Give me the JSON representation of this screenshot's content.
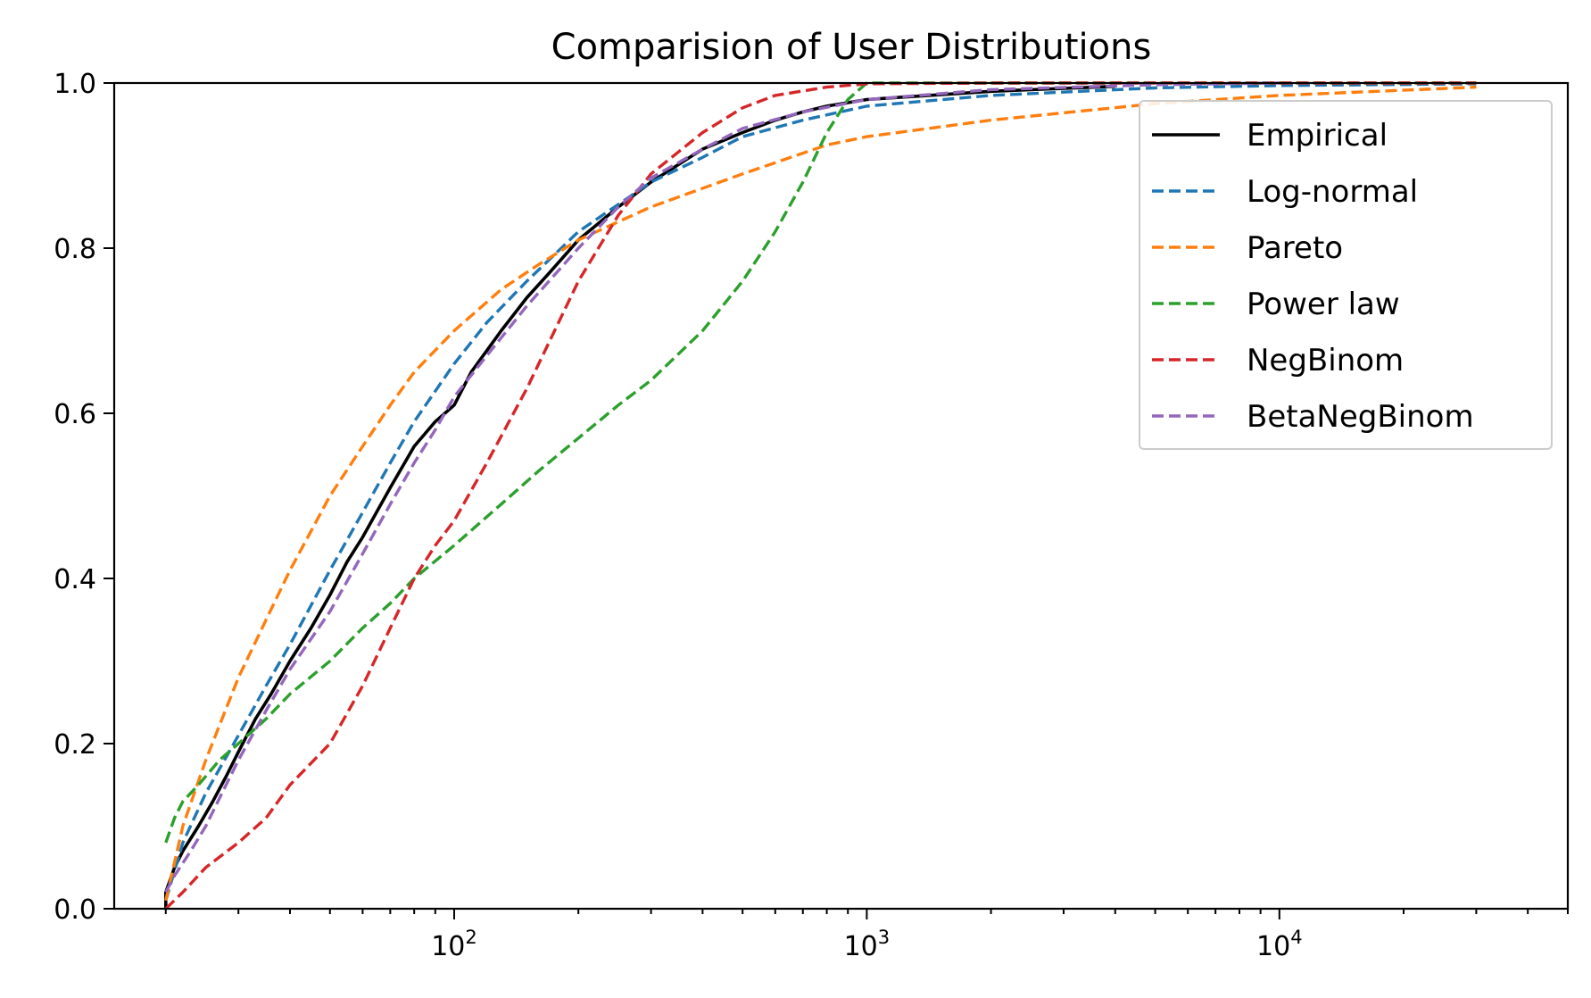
{
  "chart_data": {
    "type": "line",
    "title": "Comparision of User Distributions",
    "xlabel": "",
    "ylabel": "",
    "xscale": "log",
    "xlim": [
      15,
      50000
    ],
    "ylim": [
      0,
      1
    ],
    "grid": false,
    "legend_position": "top-right",
    "x_ticks": [
      {
        "value": 100,
        "base": "10",
        "exp": "2"
      },
      {
        "value": 1000,
        "base": "10",
        "exp": "3"
      },
      {
        "value": 10000,
        "base": "10",
        "exp": "4"
      }
    ],
    "y_ticks": [
      {
        "value": 0.0,
        "label": "0.0"
      },
      {
        "value": 0.2,
        "label": "0.2"
      },
      {
        "value": 0.4,
        "label": "0.4"
      },
      {
        "value": 0.6,
        "label": "0.6"
      },
      {
        "value": 0.8,
        "label": "0.8"
      },
      {
        "value": 1.0,
        "label": "1.0"
      }
    ],
    "series": [
      {
        "name": "Empirical",
        "color": "#000000",
        "dash": "solid",
        "points": [
          [
            20,
            0.0
          ],
          [
            20,
            0.02
          ],
          [
            21,
            0.05
          ],
          [
            22,
            0.07
          ],
          [
            24,
            0.1
          ],
          [
            26,
            0.13
          ],
          [
            28,
            0.16
          ],
          [
            30,
            0.19
          ],
          [
            33,
            0.23
          ],
          [
            36,
            0.26
          ],
          [
            40,
            0.3
          ],
          [
            45,
            0.34
          ],
          [
            50,
            0.38
          ],
          [
            55,
            0.42
          ],
          [
            60,
            0.45
          ],
          [
            70,
            0.51
          ],
          [
            80,
            0.56
          ],
          [
            90,
            0.59
          ],
          [
            100,
            0.61
          ],
          [
            110,
            0.65
          ],
          [
            130,
            0.7
          ],
          [
            150,
            0.74
          ],
          [
            170,
            0.77
          ],
          [
            200,
            0.81
          ],
          [
            250,
            0.85
          ],
          [
            300,
            0.88
          ],
          [
            400,
            0.92
          ],
          [
            500,
            0.94
          ],
          [
            600,
            0.955
          ],
          [
            700,
            0.965
          ],
          [
            800,
            0.972
          ],
          [
            1000,
            0.98
          ],
          [
            2000,
            0.99
          ],
          [
            4000,
            0.996
          ]
        ]
      },
      {
        "name": "Log-normal",
        "color": "#1f77b4",
        "dash": "dashed",
        "points": [
          [
            20,
            0.01
          ],
          [
            22,
            0.08
          ],
          [
            25,
            0.14
          ],
          [
            30,
            0.21
          ],
          [
            35,
            0.27
          ],
          [
            40,
            0.32
          ],
          [
            50,
            0.41
          ],
          [
            60,
            0.48
          ],
          [
            70,
            0.54
          ],
          [
            80,
            0.59
          ],
          [
            100,
            0.66
          ],
          [
            120,
            0.71
          ],
          [
            150,
            0.76
          ],
          [
            200,
            0.82
          ],
          [
            300,
            0.88
          ],
          [
            400,
            0.91
          ],
          [
            500,
            0.935
          ],
          [
            700,
            0.955
          ],
          [
            1000,
            0.972
          ],
          [
            2000,
            0.985
          ],
          [
            5000,
            0.994
          ],
          [
            10000,
            0.997
          ],
          [
            30000,
            0.999
          ]
        ]
      },
      {
        "name": "Pareto",
        "color": "#ff7f0e",
        "dash": "dashed",
        "points": [
          [
            20,
            0.01
          ],
          [
            22,
            0.1
          ],
          [
            25,
            0.18
          ],
          [
            30,
            0.28
          ],
          [
            35,
            0.35
          ],
          [
            40,
            0.41
          ],
          [
            50,
            0.5
          ],
          [
            60,
            0.56
          ],
          [
            70,
            0.61
          ],
          [
            80,
            0.65
          ],
          [
            100,
            0.7
          ],
          [
            130,
            0.75
          ],
          [
            160,
            0.78
          ],
          [
            200,
            0.81
          ],
          [
            300,
            0.85
          ],
          [
            500,
            0.89
          ],
          [
            800,
            0.925
          ],
          [
            1000,
            0.935
          ],
          [
            2000,
            0.955
          ],
          [
            5000,
            0.975
          ],
          [
            10000,
            0.985
          ],
          [
            30000,
            0.995
          ]
        ]
      },
      {
        "name": "Power law",
        "color": "#2ca02c",
        "dash": "dashed",
        "points": [
          [
            20,
            0.08
          ],
          [
            21,
            0.11
          ],
          [
            22,
            0.13
          ],
          [
            24,
            0.15
          ],
          [
            27,
            0.18
          ],
          [
            30,
            0.2
          ],
          [
            35,
            0.23
          ],
          [
            40,
            0.26
          ],
          [
            50,
            0.3
          ],
          [
            60,
            0.34
          ],
          [
            70,
            0.37
          ],
          [
            80,
            0.4
          ],
          [
            100,
            0.44
          ],
          [
            130,
            0.49
          ],
          [
            160,
            0.53
          ],
          [
            200,
            0.57
          ],
          [
            250,
            0.61
          ],
          [
            300,
            0.64
          ],
          [
            400,
            0.7
          ],
          [
            500,
            0.76
          ],
          [
            600,
            0.82
          ],
          [
            700,
            0.88
          ],
          [
            800,
            0.94
          ],
          [
            900,
            0.98
          ],
          [
            1000,
            1.0
          ],
          [
            2000,
            1.0
          ],
          [
            5000,
            1.0
          ],
          [
            10000,
            1.0
          ],
          [
            30000,
            1.0
          ]
        ]
      },
      {
        "name": "NegBinom",
        "color": "#d62728",
        "dash": "dashed",
        "points": [
          [
            20,
            0.0
          ],
          [
            22,
            0.02
          ],
          [
            25,
            0.05
          ],
          [
            30,
            0.08
          ],
          [
            35,
            0.11
          ],
          [
            40,
            0.15
          ],
          [
            50,
            0.2
          ],
          [
            60,
            0.27
          ],
          [
            70,
            0.34
          ],
          [
            80,
            0.4
          ],
          [
            90,
            0.44
          ],
          [
            100,
            0.47
          ],
          [
            120,
            0.54
          ],
          [
            150,
            0.63
          ],
          [
            200,
            0.76
          ],
          [
            250,
            0.84
          ],
          [
            300,
            0.89
          ],
          [
            400,
            0.94
          ],
          [
            500,
            0.97
          ],
          [
            600,
            0.985
          ],
          [
            800,
            0.995
          ],
          [
            1000,
            0.999
          ],
          [
            2000,
            1.0
          ],
          [
            10000,
            1.0
          ],
          [
            30000,
            1.0
          ]
        ]
      },
      {
        "name": "BetaNegBinom",
        "color": "#9467bd",
        "dash": "dashed",
        "points": [
          [
            20,
            0.02
          ],
          [
            21,
            0.04
          ],
          [
            23,
            0.07
          ],
          [
            25,
            0.1
          ],
          [
            28,
            0.15
          ],
          [
            30,
            0.18
          ],
          [
            35,
            0.24
          ],
          [
            40,
            0.29
          ],
          [
            50,
            0.36
          ],
          [
            60,
            0.43
          ],
          [
            70,
            0.49
          ],
          [
            80,
            0.54
          ],
          [
            90,
            0.58
          ],
          [
            100,
            0.62
          ],
          [
            120,
            0.67
          ],
          [
            150,
            0.73
          ],
          [
            200,
            0.8
          ],
          [
            250,
            0.85
          ],
          [
            300,
            0.885
          ],
          [
            400,
            0.92
          ],
          [
            500,
            0.945
          ],
          [
            700,
            0.965
          ],
          [
            1000,
            0.98
          ],
          [
            2000,
            0.992
          ],
          [
            5000,
            0.998
          ],
          [
            10000,
            1.0
          ]
        ]
      }
    ]
  }
}
